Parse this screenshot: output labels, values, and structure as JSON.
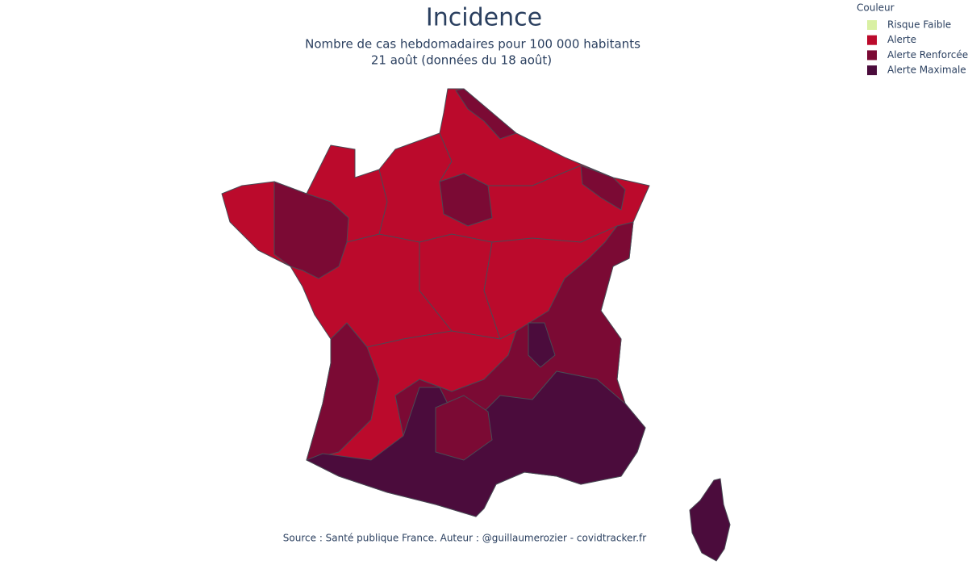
{
  "header": {
    "title": "Incidence",
    "subtitle": [
      "Nombre de cas hebdomadaires pour 100 000 habitants",
      "21 août (données du 18 août)"
    ]
  },
  "legend": {
    "title": "Couleur",
    "items": [
      {
        "label": "Risque Faible",
        "color": "#d9f0a3"
      },
      {
        "label": "Alerte",
        "color": "#bb0a2c"
      },
      {
        "label": "Alerte Renforcée",
        "color": "#7b0a34"
      },
      {
        "label": "Alerte Maximale",
        "color": "#4b0c3c"
      }
    ]
  },
  "source": "Source : Santé publique France. Auteur : @guillaumerozier - covidtracker.fr"
}
